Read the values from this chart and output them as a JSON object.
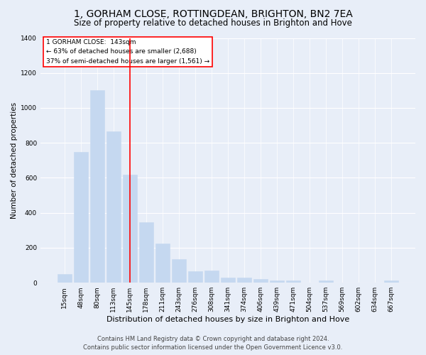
{
  "title": "1, GORHAM CLOSE, ROTTINGDEAN, BRIGHTON, BN2 7EA",
  "subtitle": "Size of property relative to detached houses in Brighton and Hove",
  "xlabel": "Distribution of detached houses by size in Brighton and Hove",
  "ylabel": "Number of detached properties",
  "categories": [
    "15sqm",
    "48sqm",
    "80sqm",
    "113sqm",
    "145sqm",
    "178sqm",
    "211sqm",
    "243sqm",
    "276sqm",
    "308sqm",
    "341sqm",
    "374sqm",
    "406sqm",
    "439sqm",
    "471sqm",
    "504sqm",
    "537sqm",
    "569sqm",
    "602sqm",
    "634sqm",
    "667sqm"
  ],
  "values": [
    50,
    750,
    1100,
    865,
    620,
    345,
    225,
    135,
    65,
    70,
    30,
    30,
    22,
    12,
    12,
    0,
    12,
    0,
    0,
    0,
    12
  ],
  "bar_color": "#c5d8f0",
  "bar_edgecolor": "#c5d8f0",
  "vline_color": "red",
  "vline_x": 4,
  "annotation_title": "1 GORHAM CLOSE:  143sqm",
  "annotation_line1": "← 63% of detached houses are smaller (2,688)",
  "annotation_line2": "37% of semi-detached houses are larger (1,561) →",
  "annotation_box_edgecolor": "red",
  "annotation_bg": "white",
  "ylim": [
    0,
    1400
  ],
  "yticks": [
    0,
    200,
    400,
    600,
    800,
    1000,
    1200,
    1400
  ],
  "footer1": "Contains HM Land Registry data © Crown copyright and database right 2024.",
  "footer2": "Contains public sector information licensed under the Open Government Licence v3.0.",
  "background_color": "#e8eef8",
  "plot_bg": "#e8eef8",
  "grid_color": "#ffffff",
  "title_fontsize": 10,
  "subtitle_fontsize": 8.5,
  "xlabel_fontsize": 8,
  "ylabel_fontsize": 7.5,
  "tick_fontsize": 6.5,
  "annotation_fontsize": 6.5,
  "footer_fontsize": 6
}
